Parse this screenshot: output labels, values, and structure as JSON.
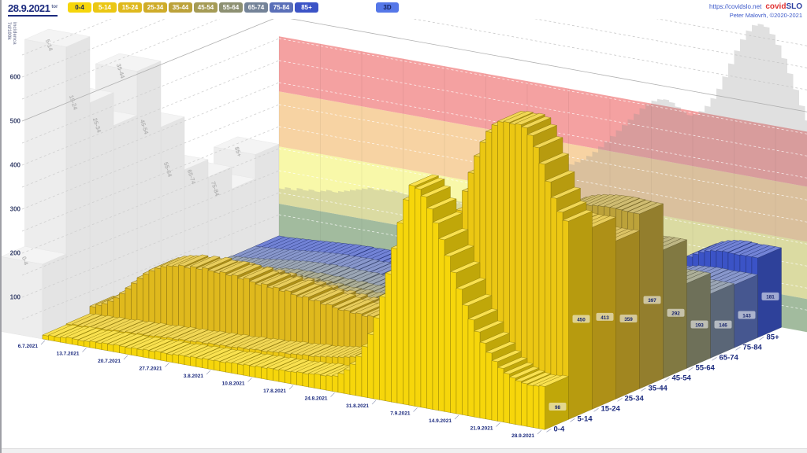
{
  "header": {
    "date": "28.9.2021",
    "weekday": "tor",
    "view_button": "3D",
    "link": "https://covidslo.net",
    "brand_covid": "covid",
    "brand_slo": "SLO",
    "author": "Peter Malovrh, ©2020-2021",
    "buttons": [
      {
        "label": "0-4",
        "color": "#F6D60B",
        "text": "#14215c"
      },
      {
        "label": "5-14",
        "color": "#EBC713",
        "text": "#ffffff"
      },
      {
        "label": "15-24",
        "color": "#DFB91D",
        "text": "#ffffff"
      },
      {
        "label": "25-34",
        "color": "#CFAC29",
        "text": "#ffffff"
      },
      {
        "label": "35-44",
        "color": "#BCA23A",
        "text": "#ffffff"
      },
      {
        "label": "45-54",
        "color": "#A59B55",
        "text": "#ffffff"
      },
      {
        "label": "55-64",
        "color": "#8D9072",
        "text": "#ffffff"
      },
      {
        "label": "65-74",
        "color": "#748398",
        "text": "#ffffff"
      },
      {
        "label": "75-84",
        "color": "#5A6FB8",
        "text": "#ffffff"
      },
      {
        "label": "85+",
        "color": "#3B53C6",
        "text": "#ffffff"
      }
    ]
  },
  "axis": {
    "title_line1": "7d/100k",
    "title_line2": "incidenca",
    "value_ticks": [
      100,
      200,
      300,
      400,
      500,
      600
    ],
    "date_labels": [
      "6.7.2021",
      "13.7.2021",
      "20.7.2021",
      "27.7.2021",
      "3.8.2021",
      "10.8.2021",
      "17.8.2021",
      "24.8.2021",
      "31.8.2021",
      "7.9.2021",
      "14.9.2021",
      "21.9.2021",
      "28.9.2021"
    ],
    "age_labels": [
      "0-4",
      "5-14",
      "15-24",
      "25-34",
      "35-44",
      "45-54",
      "55-64",
      "65-74",
      "75-84",
      "85+"
    ]
  },
  "colors": {
    "navy_text": "#1b2a7e",
    "grid_dashed": "#cfcfcf",
    "grid_solid": "#b0b0b0",
    "ghost_fill": "#ececec",
    "ghost_label": "#b5b5b5",
    "chip_bg": "rgba(255,255,255,0.55)",
    "chip_text": "#17246b"
  },
  "chart_data": {
    "type": "bar",
    "subtype": "3d-daily-bars-by-age",
    "title": "7d/100k incidenca",
    "x_start": "6.7.2021",
    "x_end": "28.9.2021",
    "days": 85,
    "ylim": [
      0,
      650
    ],
    "grid": "50-unit dashed lines, 500 solid",
    "wall_bands": [
      {
        "from": 0,
        "to": 75,
        "color": "#A9CCA4"
      },
      {
        "from": 75,
        "to": 205,
        "color": "#F8F8A9"
      },
      {
        "from": 205,
        "to": 330,
        "color": "#F7D3A3"
      },
      {
        "from": 330,
        "to": 455,
        "color": "#F4A1A1"
      }
    ],
    "ghost_left_wall": {
      "note": "gray reference histogram per age group on left wall",
      "values": [
        170,
        640,
        490,
        415,
        515,
        365,
        245,
        205,
        155,
        210
      ]
    },
    "ghost_back_wall": {
      "note": "gray reference silhouette on back wall, daily",
      "start_day": 0,
      "values": [
        110,
        115,
        112,
        118,
        116,
        120,
        118,
        122,
        126,
        124,
        128,
        132,
        136,
        140,
        144,
        148,
        146,
        150,
        148,
        152,
        150,
        148,
        152,
        150,
        154,
        152,
        156,
        154,
        152,
        156,
        154,
        158,
        160,
        164,
        168,
        172,
        178,
        184,
        190,
        198,
        208,
        218,
        228,
        238,
        248,
        254,
        260,
        268,
        276,
        284,
        292,
        300,
        310,
        322,
        336,
        350,
        365,
        380,
        395,
        410,
        425,
        440,
        452,
        462,
        468,
        470,
        466,
        458,
        450,
        444,
        448,
        458,
        472,
        492,
        516,
        546,
        578,
        610,
        638,
        660,
        675,
        680,
        676,
        662,
        640,
        612,
        580,
        546,
        512,
        480
      ]
    },
    "series": [
      {
        "name": "0-4",
        "color": "#F6D60B",
        "end_value": 98,
        "values": [
          9,
          11,
          10,
          12,
          14,
          13,
          12,
          13,
          15,
          14,
          16,
          15,
          17,
          16,
          15,
          17,
          16,
          18,
          17,
          19,
          18,
          17,
          19,
          20,
          19,
          21,
          20,
          22,
          21,
          22,
          21,
          23,
          24,
          23,
          25,
          24,
          26,
          25,
          27,
          26,
          28,
          27,
          28,
          30,
          29,
          31,
          33,
          32,
          34,
          36,
          44,
          55,
          70,
          90,
          115,
          145,
          185,
          235,
          290,
          350,
          410,
          465,
          500,
          495,
          480,
          455,
          425,
          390,
          355,
          320,
          285,
          250,
          220,
          195,
          172,
          152,
          135,
          122,
          112,
          105,
          100,
          97,
          95,
          96,
          98
        ]
      },
      {
        "name": "5-14",
        "color": "#EBC713",
        "end_value": 450,
        "values": [
          11,
          13,
          12,
          14,
          13,
          15,
          14,
          15,
          17,
          16,
          18,
          17,
          19,
          18,
          19,
          21,
          20,
          22,
          21,
          23,
          22,
          23,
          25,
          24,
          26,
          25,
          27,
          26,
          27,
          29,
          28,
          30,
          31,
          30,
          32,
          33,
          35,
          34,
          36,
          37,
          39,
          38,
          40,
          42,
          44,
          46,
          48,
          51,
          54,
          58,
          63,
          69,
          76,
          84,
          93,
          103,
          115,
          130,
          148,
          170,
          196,
          226,
          260,
          298,
          340,
          384,
          430,
          476,
          520,
          560,
          594,
          620,
          638,
          648,
          650,
          648,
          650,
          645,
          630,
          605,
          570,
          532,
          497,
          468,
          450
        ]
      },
      {
        "name": "15-24",
        "color": "#DFB91D",
        "end_value": 413,
        "values": [
          28,
          34,
          40,
          48,
          58,
          70,
          84,
          98,
          112,
          124,
          134,
          142,
          148,
          152,
          154,
          158,
          155,
          160,
          157,
          162,
          158,
          156,
          160,
          155,
          158,
          152,
          156,
          150,
          146,
          150,
          144,
          147,
          141,
          144,
          138,
          135,
          138,
          132,
          134,
          128,
          130,
          125,
          122,
          124,
          120,
          122,
          118,
          121,
          119,
          121,
          125,
          130,
          137,
          146,
          157,
          170,
          185,
          202,
          222,
          245,
          270,
          297,
          325,
          352,
          378,
          400,
          420,
          436,
          448,
          456,
          460,
          458,
          452,
          445,
          437,
          430,
          424,
          420,
          417,
          415,
          414,
          413,
          412,
          412,
          413
        ]
      },
      {
        "name": "25-34",
        "color": "#CFAC29",
        "end_value": 359,
        "values": [
          22,
          27,
          33,
          40,
          48,
          57,
          67,
          77,
          87,
          96,
          104,
          110,
          115,
          119,
          122,
          125,
          122,
          126,
          123,
          127,
          124,
          122,
          125,
          120,
          123,
          118,
          121,
          116,
          113,
          116,
          111,
          113,
          108,
          110,
          105,
          102,
          105,
          100,
          102,
          97,
          99,
          95,
          92,
          94,
          91,
          93,
          90,
          92,
          90,
          92,
          95,
          100,
          106,
          114,
          123,
          134,
          147,
          162,
          179,
          198,
          219,
          242,
          266,
          290,
          313,
          334,
          352,
          367,
          378,
          386,
          390,
          391,
          389,
          385,
          380,
          375,
          370,
          366,
          363,
          361,
          359,
          358,
          358,
          358,
          359
        ]
      },
      {
        "name": "35-44",
        "color": "#BCA23A",
        "end_value": 397,
        "values": [
          10,
          12,
          15,
          18,
          22,
          27,
          32,
          38,
          44,
          50,
          56,
          61,
          66,
          70,
          73,
          76,
          74,
          77,
          75,
          78,
          76,
          74,
          77,
          73,
          75,
          71,
          74,
          70,
          68,
          70,
          67,
          69,
          66,
          68,
          65,
          63,
          66,
          63,
          65,
          62,
          64,
          62,
          61,
          63,
          61,
          63,
          62,
          64,
          63,
          65,
          68,
          72,
          77,
          84,
          92,
          101,
          112,
          124,
          138,
          154,
          172,
          192,
          213,
          235,
          257,
          279,
          300,
          319,
          336,
          351,
          363,
          373,
          381,
          387,
          391,
          394,
          396,
          398,
          399,
          400,
          400,
          399,
          398,
          397,
          397
        ]
      },
      {
        "name": "45-54",
        "color": "#A59B55",
        "end_value": 292,
        "values": [
          7,
          9,
          11,
          13,
          16,
          19,
          23,
          27,
          31,
          35,
          39,
          42,
          45,
          48,
          50,
          52,
          51,
          53,
          52,
          54,
          52,
          51,
          53,
          50,
          52,
          49,
          51,
          48,
          47,
          48,
          46,
          48,
          45,
          47,
          45,
          43,
          45,
          43,
          44,
          42,
          44,
          42,
          41,
          43,
          42,
          43,
          42,
          44,
          43,
          45,
          47,
          50,
          54,
          59,
          65,
          72,
          80,
          89,
          99,
          111,
          124,
          138,
          153,
          169,
          185,
          201,
          216,
          230,
          243,
          255,
          265,
          273,
          279,
          284,
          288,
          290,
          292,
          293,
          293,
          292,
          291,
          291,
          292,
          292,
          292
        ]
      },
      {
        "name": "55-64",
        "color": "#8D9072",
        "end_value": 193,
        "values": [
          4,
          5,
          7,
          8,
          10,
          12,
          14,
          17,
          19,
          22,
          24,
          26,
          28,
          30,
          31,
          33,
          32,
          33,
          32,
          34,
          33,
          32,
          33,
          31,
          32,
          30,
          32,
          30,
          29,
          30,
          29,
          30,
          28,
          30,
          28,
          27,
          29,
          27,
          28,
          27,
          28,
          27,
          27,
          28,
          27,
          28,
          28,
          29,
          28,
          29,
          31,
          33,
          36,
          39,
          43,
          48,
          53,
          59,
          66,
          74,
          83,
          92,
          102,
          112,
          123,
          133,
          143,
          153,
          162,
          170,
          176,
          182,
          186,
          189,
          191,
          192,
          193,
          194,
          194,
          193,
          193,
          192,
          193,
          193,
          193
        ]
      },
      {
        "name": "65-74",
        "color": "#748398",
        "end_value": 146,
        "values": [
          3,
          4,
          5,
          6,
          8,
          9,
          11,
          13,
          15,
          16,
          18,
          19,
          21,
          22,
          23,
          24,
          23,
          25,
          24,
          25,
          24,
          23,
          24,
          23,
          24,
          22,
          23,
          22,
          21,
          22,
          21,
          22,
          21,
          22,
          21,
          20,
          21,
          20,
          21,
          20,
          21,
          20,
          20,
          21,
          20,
          21,
          21,
          22,
          21,
          22,
          23,
          25,
          27,
          29,
          32,
          36,
          40,
          44,
          49,
          55,
          61,
          68,
          75,
          83,
          90,
          98,
          105,
          112,
          119,
          125,
          130,
          135,
          138,
          141,
          143,
          144,
          145,
          146,
          146,
          145,
          145,
          146,
          146,
          146,
          146
        ]
      },
      {
        "name": "75-84",
        "color": "#5A6FB8",
        "end_value": 143,
        "values": [
          2,
          3,
          4,
          5,
          6,
          7,
          9,
          10,
          12,
          13,
          15,
          16,
          17,
          18,
          19,
          20,
          19,
          20,
          20,
          21,
          20,
          19,
          20,
          19,
          20,
          18,
          19,
          18,
          18,
          19,
          18,
          19,
          18,
          19,
          18,
          17,
          18,
          17,
          18,
          17,
          18,
          17,
          17,
          18,
          17,
          18,
          18,
          19,
          18,
          19,
          20,
          21,
          23,
          25,
          28,
          31,
          34,
          38,
          42,
          47,
          52,
          58,
          64,
          71,
          78,
          85,
          92,
          99,
          106,
          113,
          119,
          125,
          130,
          134,
          137,
          140,
          141,
          142,
          143,
          143,
          142,
          142,
          143,
          143,
          143
        ]
      },
      {
        "name": "85+",
        "color": "#3B53C6",
        "end_value": 181,
        "values": [
          2,
          2,
          3,
          4,
          5,
          6,
          7,
          8,
          9,
          10,
          11,
          12,
          13,
          14,
          14,
          15,
          14,
          15,
          15,
          16,
          15,
          14,
          15,
          14,
          15,
          14,
          15,
          14,
          13,
          14,
          13,
          14,
          13,
          14,
          13,
          13,
          14,
          13,
          14,
          13,
          14,
          13,
          13,
          14,
          13,
          14,
          14,
          15,
          14,
          15,
          16,
          17,
          18,
          20,
          22,
          25,
          28,
          31,
          35,
          39,
          44,
          50,
          57,
          64,
          72,
          80,
          89,
          98,
          108,
          118,
          128,
          138,
          147,
          156,
          164,
          171,
          176,
          179,
          181,
          182,
          181,
          180,
          181,
          181,
          181
        ]
      }
    ]
  }
}
